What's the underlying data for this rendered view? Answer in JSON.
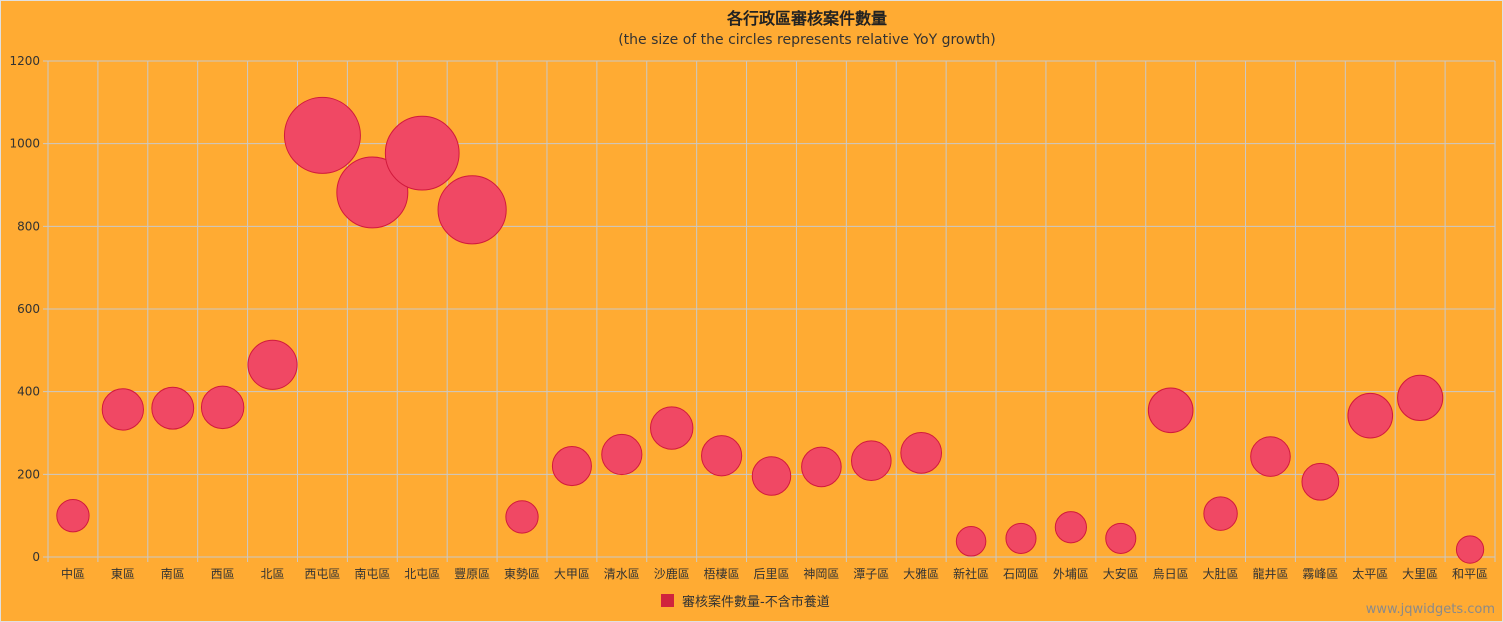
{
  "chart_data": {
    "type": "bubble",
    "title": "各行政區審核案件數量",
    "subtitle": "(the size of the circles represents relative YoY growth)",
    "xlabel": "",
    "ylabel": "",
    "ylim": [
      0,
      1200
    ],
    "yticks": [
      0,
      200,
      400,
      600,
      800,
      1000,
      1200
    ],
    "grid": true,
    "legend_position": "bottom",
    "categories": [
      "中區",
      "東區",
      "南區",
      "西區",
      "北區",
      "西屯區",
      "南屯區",
      "北屯區",
      "豐原區",
      "東勢區",
      "大甲區",
      "清水區",
      "沙鹿區",
      "梧棲區",
      "后里區",
      "神岡區",
      "潭子區",
      "大雅區",
      "新社區",
      "石岡區",
      "外埔區",
      "大安區",
      "烏日區",
      "大肚區",
      "龍井區",
      "霧峰區",
      "太平區",
      "大里區",
      "和平區"
    ],
    "series": [
      {
        "name": "審核案件數量-不含市養道",
        "color": "#f04864",
        "stroke": "#d11a3c",
        "values": [
          100,
          357,
          360,
          362,
          465,
          1020,
          882,
          977,
          840,
          97,
          220,
          248,
          312,
          245,
          196,
          218,
          233,
          252,
          38,
          45,
          72,
          45,
          355,
          105,
          243,
          182,
          342,
          385,
          18
        ],
        "sizes": [
          0.22,
          0.38,
          0.39,
          0.4,
          0.52,
          1.0,
          0.91,
          0.96,
          0.86,
          0.22,
          0.34,
          0.36,
          0.4,
          0.36,
          0.33,
          0.35,
          0.35,
          0.37,
          0.17,
          0.18,
          0.2,
          0.18,
          0.44,
          0.24,
          0.35,
          0.3,
          0.44,
          0.45,
          0.13
        ]
      }
    ]
  },
  "credit": "www.jqwidgets.com"
}
